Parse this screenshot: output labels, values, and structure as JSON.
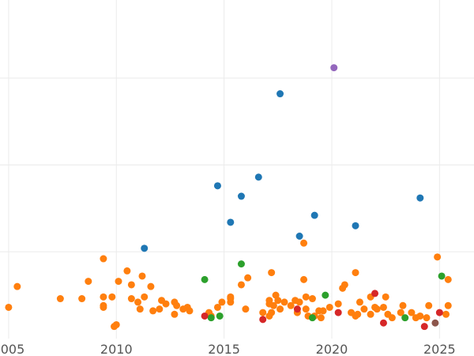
{
  "chart_data": {
    "type": "scatter",
    "title": "",
    "xlabel": "",
    "ylabel": "",
    "xlim": [
      2004.6,
      2026.6
    ],
    "ylim": [
      0,
      19.5
    ],
    "xticks": [
      {
        "value": 2005,
        "label": "2005"
      },
      {
        "value": 2010,
        "label": "2010"
      },
      {
        "value": 2015,
        "label": "2015"
      },
      {
        "value": 2020,
        "label": "2020"
      },
      {
        "value": 2025,
        "label": "2025"
      }
    ],
    "yticks": [
      5,
      10,
      15
    ],
    "ytick_labels_visible": false,
    "grid": true,
    "legend": "none",
    "series": [
      {
        "color": "#ff7f0e",
        "points": [
          [
            2005.0,
            1.8
          ],
          [
            2005.4,
            3.0
          ],
          [
            2007.4,
            2.3
          ],
          [
            2008.4,
            2.3
          ],
          [
            2008.7,
            3.3
          ],
          [
            2009.4,
            4.6
          ],
          [
            2009.4,
            2.4
          ],
          [
            2009.4,
            1.9
          ],
          [
            2009.4,
            1.8
          ],
          [
            2009.8,
            2.4
          ],
          [
            2009.9,
            0.7
          ],
          [
            2010.0,
            0.8
          ],
          [
            2010.1,
            3.3
          ],
          [
            2010.5,
            3.9
          ],
          [
            2010.7,
            2.3
          ],
          [
            2010.7,
            3.1
          ],
          [
            2011.0,
            2.1
          ],
          [
            2011.1,
            1.7
          ],
          [
            2011.2,
            3.6
          ],
          [
            2011.3,
            2.4
          ],
          [
            2011.6,
            3.0
          ],
          [
            2011.7,
            1.6
          ],
          [
            2012.0,
            1.7
          ],
          [
            2012.1,
            2.2
          ],
          [
            2012.3,
            2.0
          ],
          [
            2012.7,
            1.4
          ],
          [
            2012.7,
            2.1
          ],
          [
            2012.8,
            1.9
          ],
          [
            2013.1,
            1.7
          ],
          [
            2013.3,
            1.8
          ],
          [
            2013.4,
            1.6
          ],
          [
            2014.3,
            1.5
          ],
          [
            2014.4,
            1.3
          ],
          [
            2014.7,
            1.8
          ],
          [
            2014.9,
            2.1
          ],
          [
            2015.3,
            2.1
          ],
          [
            2015.3,
            2.3
          ],
          [
            2015.3,
            2.4
          ],
          [
            2015.8,
            3.1
          ],
          [
            2016.0,
            1.7
          ],
          [
            2016.1,
            3.5
          ],
          [
            2016.8,
            1.5
          ],
          [
            2017.1,
            1.3
          ],
          [
            2017.1,
            2.0
          ],
          [
            2017.1,
            2.2
          ],
          [
            2017.2,
            1.5
          ],
          [
            2017.2,
            3.8
          ],
          [
            2017.3,
            1.9
          ],
          [
            2017.4,
            2.5
          ],
          [
            2017.5,
            2.2
          ],
          [
            2017.6,
            1.7
          ],
          [
            2017.8,
            2.1
          ],
          [
            2018.1,
            1.9
          ],
          [
            2018.3,
            2.2
          ],
          [
            2018.4,
            1.5
          ],
          [
            2018.5,
            2.1
          ],
          [
            2018.7,
            5.5
          ],
          [
            2018.7,
            3.4
          ],
          [
            2018.8,
            2.4
          ],
          [
            2018.8,
            1.7
          ],
          [
            2018.9,
            1.3
          ],
          [
            2019.1,
            2.3
          ],
          [
            2019.2,
            1.3
          ],
          [
            2019.4,
            1.6
          ],
          [
            2019.5,
            1.2
          ],
          [
            2019.6,
            1.6
          ],
          [
            2019.9,
            1.8
          ],
          [
            2020.3,
            2.0
          ],
          [
            2020.5,
            2.9
          ],
          [
            2020.6,
            3.1
          ],
          [
            2020.9,
            1.5
          ],
          [
            2021.1,
            3.8
          ],
          [
            2021.1,
            1.3
          ],
          [
            2021.2,
            1.4
          ],
          [
            2021.3,
            2.1
          ],
          [
            2021.5,
            1.7
          ],
          [
            2021.8,
            1.4
          ],
          [
            2021.8,
            2.4
          ],
          [
            2022.0,
            1.8
          ],
          [
            2022.1,
            1.7
          ],
          [
            2022.4,
            1.8
          ],
          [
            2022.5,
            2.4
          ],
          [
            2022.6,
            1.4
          ],
          [
            2022.8,
            1.2
          ],
          [
            2023.2,
            1.5
          ],
          [
            2023.3,
            1.9
          ],
          [
            2023.7,
            1.5
          ],
          [
            2023.9,
            1.2
          ],
          [
            2024.1,
            1.3
          ],
          [
            2024.4,
            1.2
          ],
          [
            2024.5,
            1.9
          ],
          [
            2024.9,
            4.7
          ],
          [
            2025.3,
            1.4
          ],
          [
            2025.4,
            1.9
          ],
          [
            2025.4,
            3.4
          ]
        ]
      },
      {
        "color": "#1f77b4",
        "points": [
          [
            2011.3,
            5.2
          ],
          [
            2014.7,
            8.8
          ],
          [
            2015.3,
            6.7
          ],
          [
            2015.8,
            8.2
          ],
          [
            2016.6,
            9.3
          ],
          [
            2017.6,
            14.1
          ],
          [
            2018.5,
            5.9
          ],
          [
            2019.2,
            7.1
          ],
          [
            2021.1,
            6.5
          ],
          [
            2024.1,
            8.1
          ]
        ]
      },
      {
        "color": "#2ca02c",
        "points": [
          [
            2014.1,
            3.4
          ],
          [
            2014.4,
            1.2
          ],
          [
            2014.8,
            1.3
          ],
          [
            2015.8,
            4.3
          ],
          [
            2019.1,
            1.2
          ],
          [
            2019.7,
            2.5
          ],
          [
            2023.4,
            1.2
          ],
          [
            2025.1,
            3.6
          ]
        ]
      },
      {
        "color": "#d62728",
        "points": [
          [
            2014.1,
            1.3
          ],
          [
            2016.8,
            1.1
          ],
          [
            2018.4,
            1.7
          ],
          [
            2020.3,
            1.5
          ],
          [
            2022.0,
            2.6
          ],
          [
            2022.4,
            0.9
          ],
          [
            2024.3,
            0.7
          ],
          [
            2025.0,
            1.5
          ]
        ]
      },
      {
        "color": "#9467bd",
        "points": [
          [
            2020.1,
            15.6
          ]
        ]
      },
      {
        "color": "#8c564b",
        "points": [
          [
            2024.8,
            0.9
          ]
        ]
      }
    ]
  }
}
